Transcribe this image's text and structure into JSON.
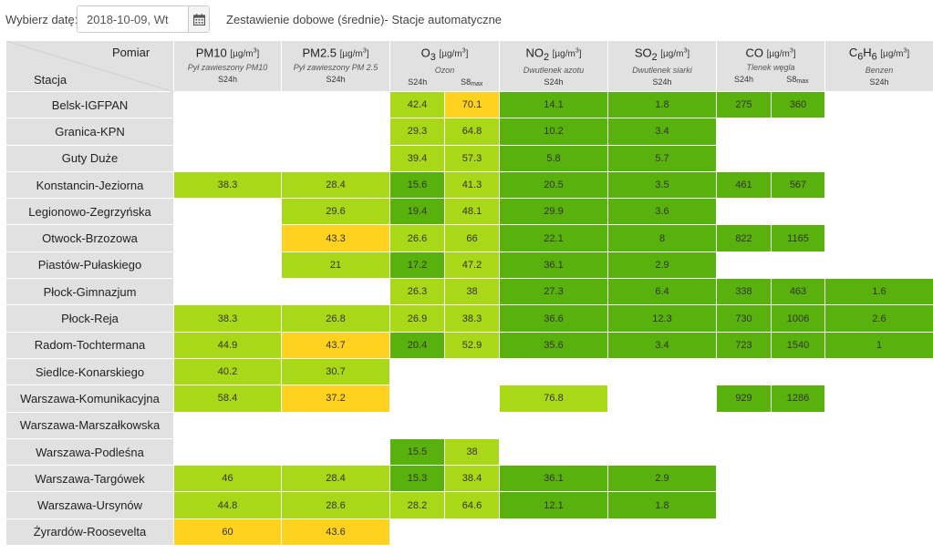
{
  "controls": {
    "date_label": "Wybierz datę:",
    "date_value": "2018-10-09, Wt",
    "report_title": "Zestawienie dobowe (średnie)- Stacje automatyczne",
    "calendar_icon": "calendar-icon"
  },
  "colors": {
    "G": "#58b10d",
    "L": "#a9d818",
    "Y": "#ffd21f",
    "W": "#ffffff",
    "header_bg": "#e1e1e1"
  },
  "header": {
    "corner_top": "Pomiar",
    "corner_bottom": "Stacja",
    "pollutants": [
      {
        "base": "PM10",
        "sub": "",
        "unit": "[µg/m³]",
        "desc": "Pył zawieszony PM10",
        "cols": [
          "S24h"
        ]
      },
      {
        "base": "PM2.5",
        "sub": "",
        "unit": "[µg/m³]",
        "desc": "Pył zawieszony PM 2.5",
        "cols": [
          "S24h"
        ]
      },
      {
        "base": "O",
        "sub": "3",
        "unit": "[µg/m³]",
        "desc": "Ozon",
        "cols": [
          "S24h",
          "S8max"
        ]
      },
      {
        "base": "NO",
        "sub": "2",
        "unit": "[µg/m³]",
        "desc": "Dwutlenek azotu",
        "cols": [
          "S24h"
        ]
      },
      {
        "base": "SO",
        "sub": "2",
        "unit": "[µg/m³]",
        "desc": "Dwutlenek siarki",
        "cols": [
          "S24h"
        ]
      },
      {
        "base": "CO",
        "sub": "",
        "unit": "[µg/m³]",
        "desc": "Tlenek węgla",
        "cols": [
          "S24h",
          "S8max"
        ]
      },
      {
        "base": "C6H6",
        "sub": "",
        "unit": "[µg/m³]",
        "desc": "Benzen",
        "cols": [
          "S24h"
        ]
      }
    ]
  },
  "rows": [
    {
      "station": "Belsk-IGFPAN",
      "pm10": [
        "",
        "W"
      ],
      "pm25": [
        "",
        "W"
      ],
      "o3_24": [
        "42.4",
        "L"
      ],
      "o3_8": [
        "70.1",
        "Y"
      ],
      "no2": [
        "14.1",
        "G"
      ],
      "so2": [
        "1.8",
        "G"
      ],
      "co_24": [
        "275",
        "G"
      ],
      "co_8": [
        "360",
        "G"
      ],
      "c6h6": [
        "",
        "W"
      ]
    },
    {
      "station": "Granica-KPN",
      "pm10": [
        "",
        "W"
      ],
      "pm25": [
        "",
        "W"
      ],
      "o3_24": [
        "29.3",
        "L"
      ],
      "o3_8": [
        "64.8",
        "L"
      ],
      "no2": [
        "10.2",
        "G"
      ],
      "so2": [
        "3.4",
        "G"
      ],
      "co_24": [
        "",
        "W"
      ],
      "co_8": [
        "",
        "W"
      ],
      "c6h6": [
        "",
        "W"
      ]
    },
    {
      "station": "Guty Duże",
      "pm10": [
        "",
        "W"
      ],
      "pm25": [
        "",
        "W"
      ],
      "o3_24": [
        "39.4",
        "L"
      ],
      "o3_8": [
        "57.3",
        "L"
      ],
      "no2": [
        "5.8",
        "G"
      ],
      "so2": [
        "5.7",
        "G"
      ],
      "co_24": [
        "",
        "W"
      ],
      "co_8": [
        "",
        "W"
      ],
      "c6h6": [
        "",
        "W"
      ]
    },
    {
      "station": "Konstancin-Jeziorna",
      "pm10": [
        "38.3",
        "L"
      ],
      "pm25": [
        "28.4",
        "L"
      ],
      "o3_24": [
        "15.6",
        "G"
      ],
      "o3_8": [
        "41.3",
        "L"
      ],
      "no2": [
        "20.5",
        "G"
      ],
      "so2": [
        "3.5",
        "G"
      ],
      "co_24": [
        "461",
        "G"
      ],
      "co_8": [
        "567",
        "G"
      ],
      "c6h6": [
        "",
        "W"
      ]
    },
    {
      "station": "Legionowo-Zegrzyńska",
      "pm10": [
        "",
        "W"
      ],
      "pm25": [
        "29.6",
        "L"
      ],
      "o3_24": [
        "19.4",
        "G"
      ],
      "o3_8": [
        "48.1",
        "L"
      ],
      "no2": [
        "29.9",
        "G"
      ],
      "so2": [
        "3.6",
        "G"
      ],
      "co_24": [
        "",
        "W"
      ],
      "co_8": [
        "",
        "W"
      ],
      "c6h6": [
        "",
        "W"
      ]
    },
    {
      "station": "Otwock-Brzozowa",
      "pm10": [
        "",
        "W"
      ],
      "pm25": [
        "43.3",
        "Y"
      ],
      "o3_24": [
        "26.6",
        "L"
      ],
      "o3_8": [
        "66",
        "L"
      ],
      "no2": [
        "22.1",
        "G"
      ],
      "so2": [
        "8",
        "G"
      ],
      "co_24": [
        "822",
        "G"
      ],
      "co_8": [
        "1165",
        "G"
      ],
      "c6h6": [
        "",
        "W"
      ]
    },
    {
      "station": "Piastów-Pułaskiego",
      "pm10": [
        "",
        "W"
      ],
      "pm25": [
        "21",
        "L"
      ],
      "o3_24": [
        "17.2",
        "G"
      ],
      "o3_8": [
        "47.2",
        "L"
      ],
      "no2": [
        "36.1",
        "G"
      ],
      "so2": [
        "2.9",
        "G"
      ],
      "co_24": [
        "",
        "W"
      ],
      "co_8": [
        "",
        "W"
      ],
      "c6h6": [
        "",
        "W"
      ]
    },
    {
      "station": "Płock-Gimnazjum",
      "pm10": [
        "",
        "W"
      ],
      "pm25": [
        "",
        "W"
      ],
      "o3_24": [
        "26.3",
        "L"
      ],
      "o3_8": [
        "38",
        "L"
      ],
      "no2": [
        "27.3",
        "G"
      ],
      "so2": [
        "6.4",
        "G"
      ],
      "co_24": [
        "338",
        "G"
      ],
      "co_8": [
        "463",
        "G"
      ],
      "c6h6": [
        "1.6",
        "G"
      ]
    },
    {
      "station": "Płock-Reja",
      "pm10": [
        "38.3",
        "L"
      ],
      "pm25": [
        "26.8",
        "L"
      ],
      "o3_24": [
        "26.9",
        "L"
      ],
      "o3_8": [
        "38.3",
        "L"
      ],
      "no2": [
        "36.6",
        "G"
      ],
      "so2": [
        "12.3",
        "G"
      ],
      "co_24": [
        "730",
        "G"
      ],
      "co_8": [
        "1006",
        "G"
      ],
      "c6h6": [
        "2.6",
        "G"
      ]
    },
    {
      "station": "Radom-Tochtermana",
      "pm10": [
        "44.9",
        "L"
      ],
      "pm25": [
        "43.7",
        "Y"
      ],
      "o3_24": [
        "20.4",
        "G"
      ],
      "o3_8": [
        "52.9",
        "L"
      ],
      "no2": [
        "35.6",
        "G"
      ],
      "so2": [
        "3.4",
        "G"
      ],
      "co_24": [
        "723",
        "G"
      ],
      "co_8": [
        "1540",
        "G"
      ],
      "c6h6": [
        "1",
        "G"
      ]
    },
    {
      "station": "Siedlce-Konarskiego",
      "pm10": [
        "40.2",
        "L"
      ],
      "pm25": [
        "30.7",
        "L"
      ],
      "o3_24": [
        "",
        "W"
      ],
      "o3_8": [
        "",
        "W"
      ],
      "no2": [
        "",
        "W"
      ],
      "so2": [
        "",
        "W"
      ],
      "co_24": [
        "",
        "W"
      ],
      "co_8": [
        "",
        "W"
      ],
      "c6h6": [
        "",
        "W"
      ]
    },
    {
      "station": "Warszawa-Komunikacyjna",
      "pm10": [
        "58.4",
        "L"
      ],
      "pm25": [
        "37.2",
        "Y"
      ],
      "o3_24": [
        "",
        "W"
      ],
      "o3_8": [
        "",
        "W"
      ],
      "no2": [
        "76.8",
        "L"
      ],
      "so2": [
        "",
        "W"
      ],
      "co_24": [
        "929",
        "G"
      ],
      "co_8": [
        "1286",
        "G"
      ],
      "c6h6": [
        "",
        "W"
      ]
    },
    {
      "station": "Warszawa-Marszałkowska",
      "pm10": [
        "",
        "W"
      ],
      "pm25": [
        "",
        "W"
      ],
      "o3_24": [
        "",
        "W"
      ],
      "o3_8": [
        "",
        "W"
      ],
      "no2": [
        "",
        "W"
      ],
      "so2": [
        "",
        "W"
      ],
      "co_24": [
        "",
        "W"
      ],
      "co_8": [
        "",
        "W"
      ],
      "c6h6": [
        "",
        "W"
      ]
    },
    {
      "station": "Warszawa-Podleśna",
      "pm10": [
        "",
        "W"
      ],
      "pm25": [
        "",
        "W"
      ],
      "o3_24": [
        "15.5",
        "G"
      ],
      "o3_8": [
        "38",
        "L"
      ],
      "no2": [
        "",
        "W"
      ],
      "so2": [
        "",
        "W"
      ],
      "co_24": [
        "",
        "W"
      ],
      "co_8": [
        "",
        "W"
      ],
      "c6h6": [
        "",
        "W"
      ]
    },
    {
      "station": "Warszawa-Targówek",
      "pm10": [
        "46",
        "L"
      ],
      "pm25": [
        "28.4",
        "L"
      ],
      "o3_24": [
        "15.3",
        "G"
      ],
      "o3_8": [
        "38.4",
        "L"
      ],
      "no2": [
        "36.1",
        "G"
      ],
      "so2": [
        "2.9",
        "G"
      ],
      "co_24": [
        "",
        "W"
      ],
      "co_8": [
        "",
        "W"
      ],
      "c6h6": [
        "",
        "W"
      ]
    },
    {
      "station": "Warszawa-Ursynów",
      "pm10": [
        "44.8",
        "L"
      ],
      "pm25": [
        "28.6",
        "L"
      ],
      "o3_24": [
        "28.2",
        "L"
      ],
      "o3_8": [
        "64.6",
        "L"
      ],
      "no2": [
        "12.1",
        "G"
      ],
      "so2": [
        "1.8",
        "G"
      ],
      "co_24": [
        "",
        "W"
      ],
      "co_8": [
        "",
        "W"
      ],
      "c6h6": [
        "",
        "W"
      ]
    },
    {
      "station": "Żyrardów-Roosevelta",
      "pm10": [
        "60",
        "Y"
      ],
      "pm25": [
        "43.6",
        "Y"
      ],
      "o3_24": [
        "",
        "W"
      ],
      "o3_8": [
        "",
        "W"
      ],
      "no2": [
        "",
        "W"
      ],
      "so2": [
        "",
        "W"
      ],
      "co_24": [
        "",
        "W"
      ],
      "co_8": [
        "",
        "W"
      ],
      "c6h6": [
        "",
        "W"
      ]
    }
  ]
}
